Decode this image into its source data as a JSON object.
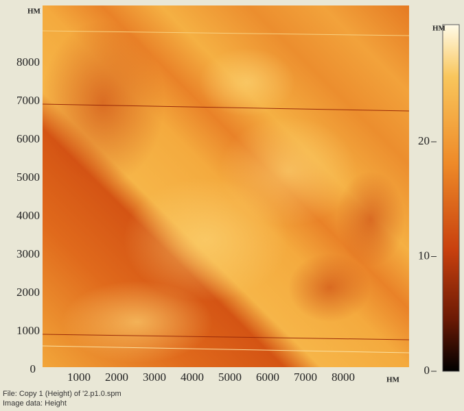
{
  "image": {
    "x_axis": {
      "unit": "HM",
      "ticks": [
        1000,
        2000,
        3000,
        4000,
        5000,
        6000,
        7000,
        8000
      ]
    },
    "y_axis": {
      "unit": "HM",
      "ticks": [
        0,
        1000,
        2000,
        3000,
        4000,
        5000,
        6000,
        7000,
        8000
      ]
    },
    "colorbar": {
      "unit": "HM",
      "ticks": [
        0,
        10,
        20
      ]
    },
    "footer": [
      "File: Copy 1 (Height) of '2.p1.0.spm",
      "Image data: Height"
    ]
  }
}
